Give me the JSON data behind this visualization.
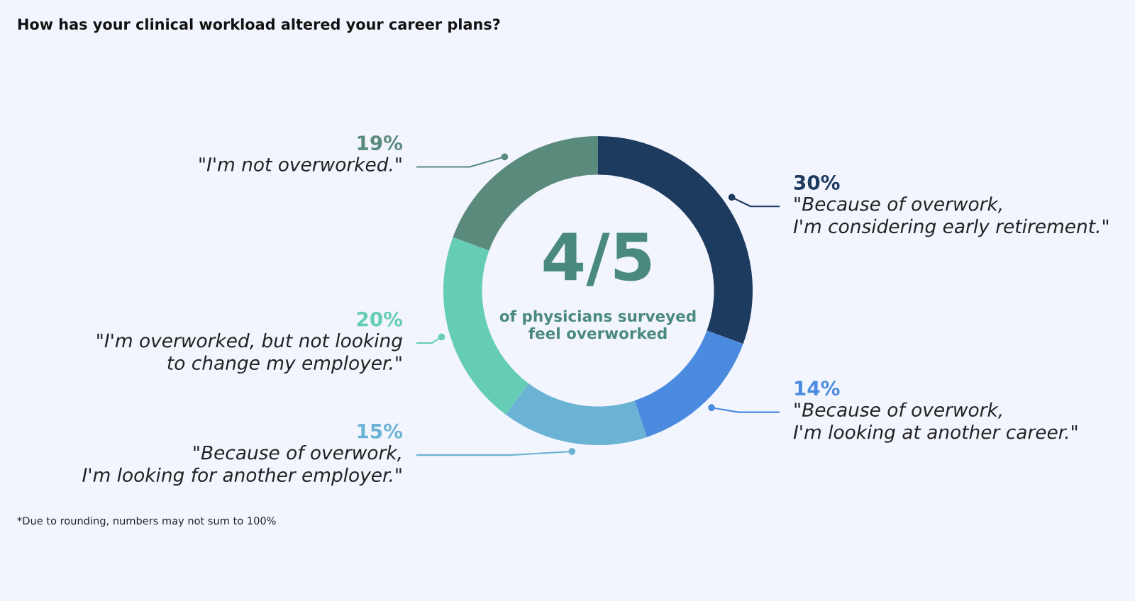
{
  "chart_data": {
    "type": "donut",
    "title": "How has your clinical workload altered your career plans?",
    "categories": [
      "\"Because of overwork,\nI'm considering early retirement.\"",
      "\"Because of overwork,\nI'm looking at another career.\"",
      "\"Because of overwork,\nI'm looking for another employer.\"",
      "\"I'm overworked, but not looking\nto change my employer.\"",
      "\"I'm not overworked.\""
    ],
    "values": [
      30,
      14,
      15,
      20,
      19
    ],
    "value_labels": [
      "30%",
      "14%",
      "15%",
      "20%",
      "19%"
    ],
    "colors": [
      "#1d3a5f",
      "#4a8be0",
      "#6ab3d4",
      "#66cdb5",
      "#5a8a7c"
    ],
    "annotations": [
      "4/5",
      "of physicians surveyed\nfeel overworked",
      "*Due to rounding, numbers may not sum to 100%"
    ]
  }
}
